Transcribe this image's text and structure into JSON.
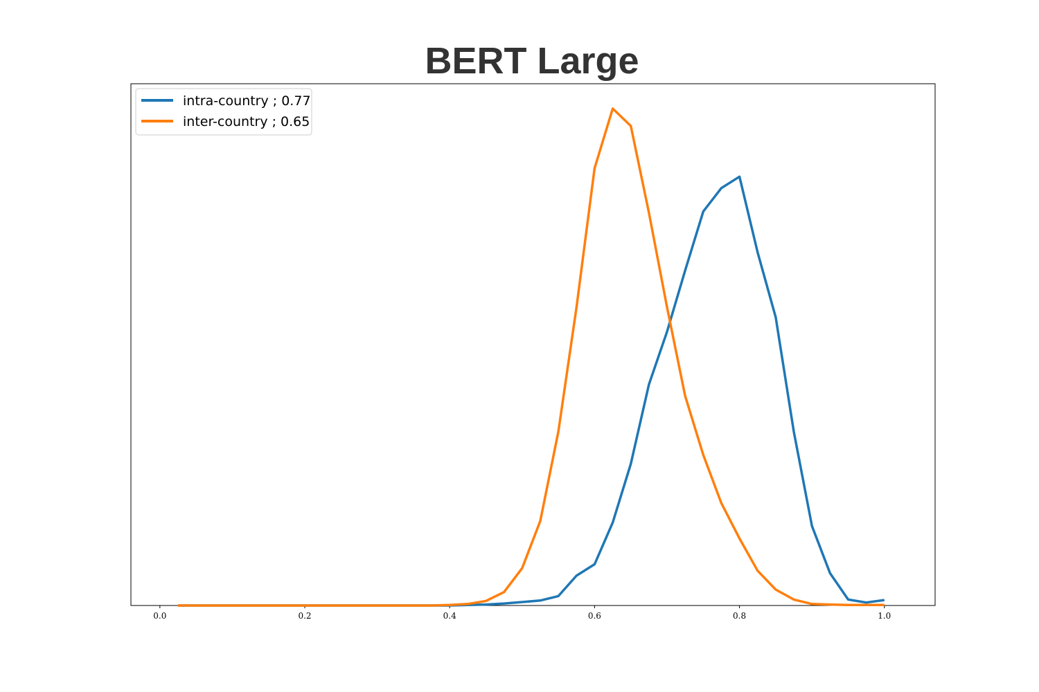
{
  "chart_data": {
    "type": "line",
    "title": "BERT Large",
    "xlabel": "",
    "ylabel": "",
    "xlim": [
      -0.04,
      1.07
    ],
    "ylim": [
      0,
      1.05
    ],
    "xticks": [
      "0.0",
      "0.2",
      "0.4",
      "0.6",
      "0.8",
      "1.0"
    ],
    "yticks": [],
    "grid": false,
    "legend_position": "top-left",
    "x": [
      0.025,
      0.05,
      0.075,
      0.1,
      0.125,
      0.15,
      0.175,
      0.2,
      0.225,
      0.25,
      0.275,
      0.3,
      0.325,
      0.35,
      0.375,
      0.4,
      0.425,
      0.45,
      0.475,
      0.5,
      0.525,
      0.55,
      0.575,
      0.6,
      0.625,
      0.65,
      0.675,
      0.7,
      0.725,
      0.75,
      0.775,
      0.8,
      0.825,
      0.85,
      0.875,
      0.9,
      0.925,
      0.95,
      0.975,
      1.0
    ],
    "series": [
      {
        "name": "intra-country ; 0.77",
        "color": "#1f77b4",
        "values": [
          0,
          0,
          0,
          0,
          0,
          0,
          0,
          0,
          0,
          0,
          0,
          0,
          0,
          0,
          0,
          0,
          0.001,
          0.002,
          0.004,
          0.007,
          0.01,
          0.019,
          0.06,
          0.083,
          0.167,
          0.285,
          0.445,
          0.551,
          0.674,
          0.793,
          0.84,
          0.863,
          0.711,
          0.58,
          0.35,
          0.16,
          0.065,
          0.012,
          0.006,
          0.011
        ],
        "chart_point_names": []
      },
      {
        "name": "inter-country ; 0.65",
        "color": "#ff7f0e",
        "values": [
          0,
          0,
          0,
          0,
          0,
          0,
          0,
          0,
          0,
          0,
          0,
          0,
          0,
          0,
          0,
          0.001,
          0.003,
          0.009,
          0.027,
          0.075,
          0.17,
          0.35,
          0.6,
          0.88,
          1.0,
          0.965,
          0.79,
          0.6,
          0.422,
          0.303,
          0.206,
          0.135,
          0.07,
          0.032,
          0.012,
          0.003,
          0.002,
          0.001,
          0.001,
          0.001
        ]
      }
    ]
  }
}
